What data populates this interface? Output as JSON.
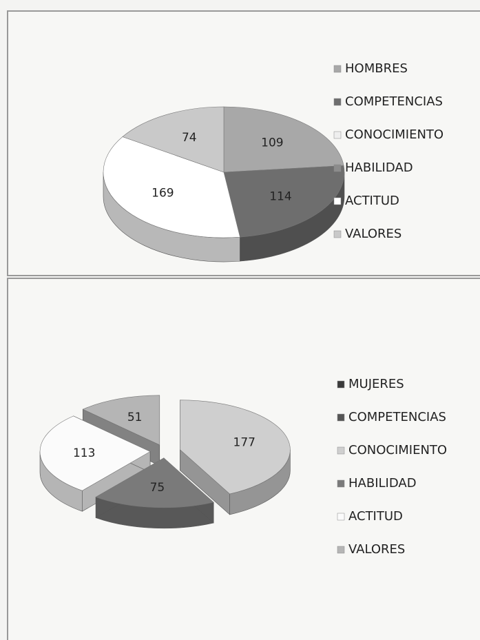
{
  "chart_data": [
    {
      "type": "pie3d",
      "categories": [
        "HOMBRES",
        "COMPETENCIAS",
        "CONOCIMIENTO",
        "HABILIDAD",
        "ACTITUD",
        "VALORES"
      ],
      "values": [
        109,
        114,
        null,
        null,
        169,
        74
      ],
      "colors": [
        "#a8a8a8",
        "#6e6e6e",
        "#eeeeee",
        "#8c8c8c",
        "#ffffff",
        "#c9c9c9"
      ],
      "exploded": false
    },
    {
      "type": "pie3d",
      "categories": [
        "MUJERES",
        "COMPETENCIAS",
        "CONOCIMIENTO",
        "HABILIDAD",
        "ACTITUD",
        "VALORES"
      ],
      "values": [
        null,
        null,
        177,
        75,
        113,
        51
      ],
      "colors": [
        "#3a3a3a",
        "#555555",
        "#cfcfcf",
        "#7a7a7a",
        "#fbfbfb",
        "#b5b5b5"
      ],
      "exploded": true
    }
  ]
}
